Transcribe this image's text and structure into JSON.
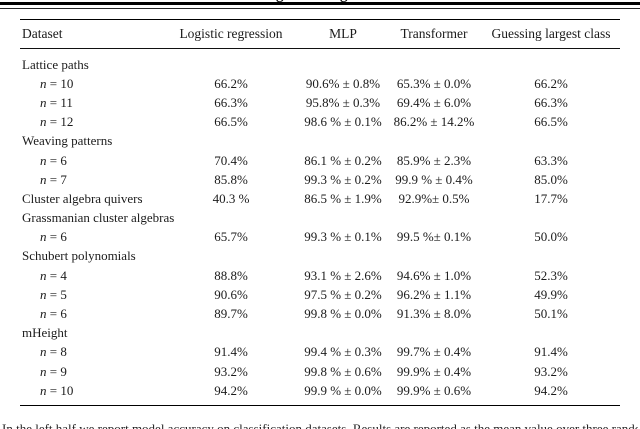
{
  "page": {
    "top_partial_glyphs": [
      "g",
      "g"
    ],
    "caption_partial": "In the left half we report model accuracy on classification datasets. Results are reported as the mean value over three randomly initialized"
  },
  "table": {
    "columns": [
      "Dataset",
      "Logistic regression",
      "MLP",
      "Transformer",
      "Guessing largest class"
    ],
    "rows": [
      {
        "kind": "group",
        "label": "Lattice paths"
      },
      {
        "kind": "data",
        "label": "n = 10",
        "indent": true,
        "values": [
          "66.2%",
          "90.6% ± 0.8%",
          "65.3% ± 0.0%",
          "66.2%"
        ]
      },
      {
        "kind": "data",
        "label": "n = 11",
        "indent": true,
        "values": [
          "66.3%",
          "95.8% ± 0.3%",
          "69.4% ± 6.0%",
          "66.3%"
        ]
      },
      {
        "kind": "data",
        "label": "n = 12",
        "indent": true,
        "values": [
          "66.5%",
          "98.6 % ± 0.1%",
          "86.2% ± 14.2%",
          "66.5%"
        ]
      },
      {
        "kind": "group",
        "label": "Weaving patterns"
      },
      {
        "kind": "data",
        "label": "n = 6",
        "indent": true,
        "values": [
          "70.4%",
          "86.1 % ± 0.2%",
          "85.9% ± 2.3%",
          "63.3%"
        ]
      },
      {
        "kind": "data",
        "label": "n = 7",
        "indent": true,
        "values": [
          "85.8%",
          "99.3 % ± 0.2%",
          "99.9 % ± 0.4%",
          "85.0%"
        ]
      },
      {
        "kind": "data",
        "label": "Cluster algebra quivers",
        "indent": false,
        "values": [
          "40.3 %",
          "86.5 % ± 1.9%",
          "92.9%± 0.5%",
          "17.7%"
        ]
      },
      {
        "kind": "group",
        "label": "Grassmanian cluster algebras"
      },
      {
        "kind": "data",
        "label": "n = 6",
        "indent": true,
        "values": [
          "65.7%",
          "99.3 % ± 0.1%",
          "99.5 %± 0.1%",
          "50.0%"
        ]
      },
      {
        "kind": "group",
        "label": "Schubert polynomials"
      },
      {
        "kind": "data",
        "label": "n = 4",
        "indent": true,
        "values": [
          "88.8%",
          "93.1 % ± 2.6%",
          "94.6% ± 1.0%",
          "52.3%"
        ]
      },
      {
        "kind": "data",
        "label": "n = 5",
        "indent": true,
        "values": [
          "90.6%",
          "97.5 % ± 0.2%",
          "96.2% ± 1.1%",
          "49.9%"
        ]
      },
      {
        "kind": "data",
        "label": "n = 6",
        "indent": true,
        "values": [
          "89.7%",
          "99.8 % ± 0.0%",
          "91.3% ± 8.0%",
          "50.1%"
        ]
      },
      {
        "kind": "group",
        "label": "mHeight"
      },
      {
        "kind": "data",
        "label": "n = 8",
        "indent": true,
        "values": [
          "91.4%",
          "99.4 % ± 0.3%",
          "99.7% ± 0.4%",
          "91.4%"
        ]
      },
      {
        "kind": "data",
        "label": "n = 9",
        "indent": true,
        "values": [
          "93.2%",
          "99.8 % ± 0.6%",
          "99.9% ± 0.4%",
          "93.2%"
        ]
      },
      {
        "kind": "data",
        "label": "n = 10",
        "indent": true,
        "values": [
          "94.2%",
          "99.9 % ± 0.0%",
          "99.9% ± 0.6%",
          "94.2%"
        ]
      }
    ]
  }
}
